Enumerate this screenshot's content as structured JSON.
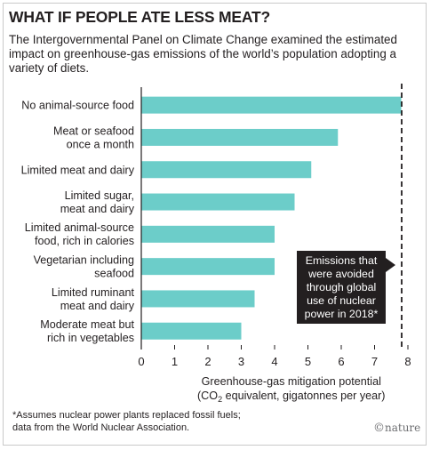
{
  "title": "WHAT IF PEOPLE ATE LESS MEAT?",
  "subtitle": "The Intergovernmental Panel on Climate Change examined the estimated impact on greenhouse-gas emissions of the world’s population adopting a variety of diets.",
  "chart_data": {
    "type": "bar",
    "orientation": "horizontal",
    "categories": [
      [
        "No animal-source food"
      ],
      [
        "Meat or seafood",
        "once a month"
      ],
      [
        "Limited meat and dairy"
      ],
      [
        "Limited sugar,",
        "meat and dairy"
      ],
      [
        "Limited animal-source",
        "food, rich in calories"
      ],
      [
        "Vegetarian including",
        "seafood"
      ],
      [
        "Limited ruminant",
        "meat and dairy"
      ],
      [
        "Moderate meat but",
        "rich in vegetables"
      ]
    ],
    "values": [
      7.8,
      5.9,
      5.1,
      4.6,
      4.0,
      4.0,
      3.4,
      3.0
    ],
    "xlim": [
      0,
      8
    ],
    "xticks": [
      "0",
      "1",
      "2",
      "3",
      "4",
      "5",
      "6",
      "7",
      "8"
    ],
    "xlabel": [
      "Greenhouse-gas mitigation potential",
      "(CO",
      "2",
      " equivalent, gigatonnes per year)"
    ],
    "bar_color": "#6ccdc9",
    "reference_line": {
      "value": 7.8,
      "style": "dashed",
      "annotation": [
        "Emissions that",
        "were avoided",
        "through global",
        "use of nuclear",
        "power in 2018*"
      ]
    }
  },
  "footnote": [
    "*Assumes nuclear power plants replaced fossil fuels;",
    "data from the World Nuclear Association."
  ],
  "brand": {
    "symbol": "©",
    "name": "nature"
  }
}
